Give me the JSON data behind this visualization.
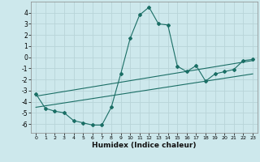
{
  "xlabel": "Humidex (Indice chaleur)",
  "ylabel": "",
  "xlim": [
    -0.5,
    23.5
  ],
  "ylim": [
    -6.8,
    5.0
  ],
  "yticks": [
    -6,
    -5,
    -4,
    -3,
    -2,
    -1,
    0,
    1,
    2,
    3,
    4
  ],
  "xticks": [
    0,
    1,
    2,
    3,
    4,
    5,
    6,
    7,
    8,
    9,
    10,
    11,
    12,
    13,
    14,
    15,
    16,
    17,
    18,
    19,
    20,
    21,
    22,
    23
  ],
  "bg_color": "#cde8ec",
  "line_color": "#1a6e65",
  "grid_color": "#b8d4d8",
  "curve1_x": [
    0,
    1,
    2,
    3,
    4,
    5,
    6,
    7,
    8,
    9,
    10,
    11,
    12,
    13,
    14,
    15,
    16,
    17,
    18,
    19,
    20,
    21,
    22,
    23
  ],
  "curve1_y": [
    -3.3,
    -4.6,
    -4.85,
    -5.0,
    -5.7,
    -5.9,
    -6.1,
    -6.1,
    -4.5,
    -1.5,
    1.7,
    3.8,
    4.5,
    3.0,
    2.9,
    -0.8,
    -1.3,
    -0.75,
    -2.15,
    -1.5,
    -1.3,
    -1.1,
    -0.3,
    -0.2
  ],
  "line2_x": [
    0,
    23
  ],
  "line2_y": [
    -3.5,
    -0.3
  ],
  "line3_x": [
    0,
    23
  ],
  "line3_y": [
    -4.5,
    -1.5
  ],
  "figsize": [
    3.2,
    2.0
  ],
  "dpi": 100
}
